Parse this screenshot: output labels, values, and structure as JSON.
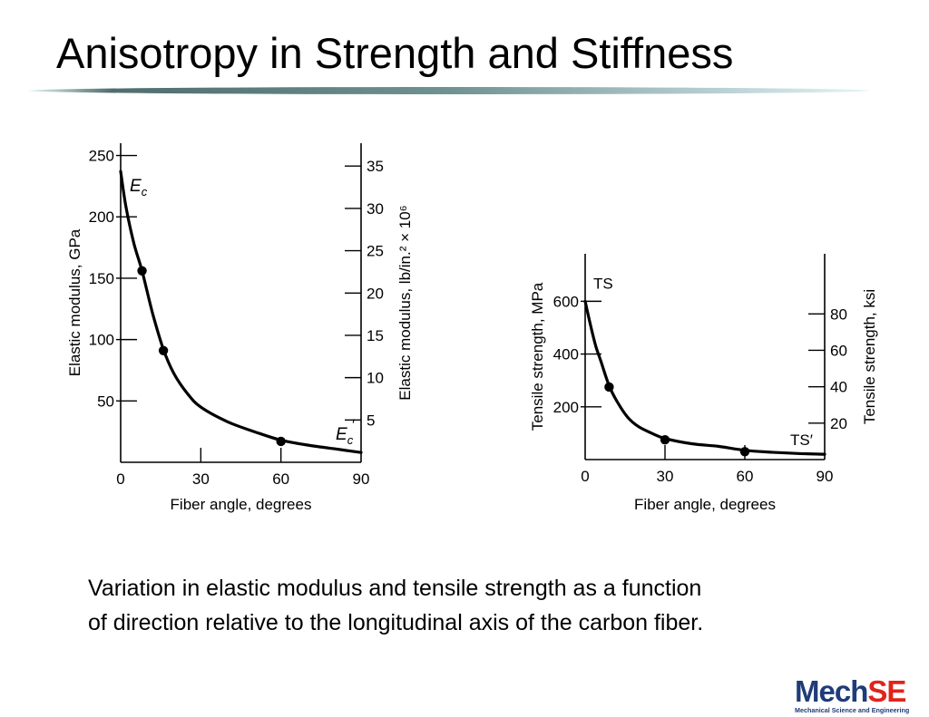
{
  "slide": {
    "title": "Anisotropy in Strength and Stiffness",
    "caption_lines": [
      "Variation in elastic modulus and tensile strength as a function",
      "of direction relative to the longitudinal axis of the carbon fiber."
    ],
    "logo": {
      "mech": "Mech",
      "se": "SE",
      "subtitle": "Mechanical Science and Engineering"
    }
  },
  "colors": {
    "rule_dark": "#4f6d6d",
    "rule_light": "#e3f3f6",
    "curve": "#000000",
    "logo_blue": "#1f3b7a",
    "logo_red": "#e2231a"
  },
  "chart_data": [
    {
      "type": "line",
      "title": "",
      "xlabel": "Fiber angle, degrees",
      "ylabel": "Elastic modulus, GPa",
      "y2label": "Elastic modulus, lb/in.² × 10⁶",
      "xlim": [
        0,
        90
      ],
      "ylim": [
        0,
        260
      ],
      "y2lim": [
        0,
        37.7
      ],
      "xticks": [
        0,
        30,
        60,
        90
      ],
      "yticks": [
        50,
        100,
        150,
        200,
        250
      ],
      "y2ticks": [
        5,
        10,
        15,
        20,
        25,
        30,
        35
      ],
      "grid": false,
      "curve_labels": {
        "top": "E",
        "top_sub": "c",
        "bottom": "E",
        "bottom_sub": "c",
        "bottom_prime": "′"
      },
      "series": [
        {
          "x": [
            0,
            2,
            5,
            8,
            12,
            16,
            20,
            25,
            30,
            40,
            50,
            60,
            70,
            80,
            90
          ],
          "y": [
            237,
            208,
            178,
            156,
            121,
            92,
            72,
            56,
            45,
            33,
            25,
            18,
            14,
            11,
            8
          ]
        }
      ],
      "markers": [
        {
          "x": 8,
          "y": 156
        },
        {
          "x": 16,
          "y": 91
        },
        {
          "x": 60,
          "y": 17
        }
      ]
    },
    {
      "type": "line",
      "title": "",
      "xlabel": "Fiber angle, degrees",
      "ylabel": "Tensile strength, MPa",
      "y2label": "Tensile strength, ksi",
      "xlim": [
        0,
        90
      ],
      "ylim": [
        0,
        780
      ],
      "y2lim": [
        0,
        113
      ],
      "xticks": [
        0,
        30,
        60,
        90
      ],
      "yticks": [
        200,
        400,
        600
      ],
      "y2ticks": [
        20,
        40,
        60,
        80
      ],
      "grid": false,
      "curve_labels": {
        "top": "TS",
        "bottom": "TS′"
      },
      "series": [
        {
          "x": [
            0,
            2,
            4,
            6,
            9,
            12,
            16,
            20,
            25,
            30,
            40,
            50,
            60,
            70,
            80,
            90
          ],
          "y": [
            600,
            510,
            430,
            370,
            280,
            220,
            160,
            125,
            100,
            80,
            60,
            50,
            35,
            28,
            23,
            20
          ]
        }
      ],
      "markers": [
        {
          "x": 9,
          "y": 275
        },
        {
          "x": 30,
          "y": 75
        },
        {
          "x": 60,
          "y": 30
        }
      ]
    }
  ]
}
